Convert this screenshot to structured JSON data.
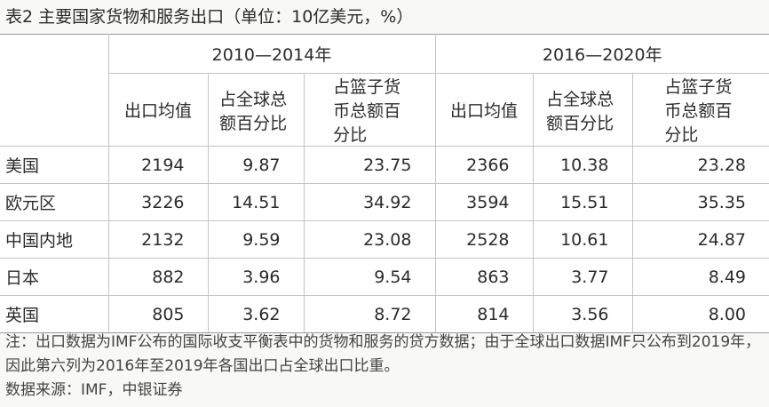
{
  "title": "表2 主要国家货物和服务出口（单位：10亿美元，%）",
  "table": {
    "groups": [
      "2010—2014年",
      "2016—2020年"
    ],
    "columns": [
      "出口均值",
      "占全球总额百分比",
      "占篮子货币总额百分比",
      "出口均值",
      "占全球总额百分比",
      "占篮子货币总额百分比"
    ],
    "rows": [
      {
        "label": "美国",
        "cells": [
          "2194",
          "9.87",
          "23.75",
          "2366",
          "10.38",
          "23.28"
        ]
      },
      {
        "label": "欧元区",
        "cells": [
          "3226",
          "14.51",
          "34.92",
          "3594",
          "15.51",
          "35.35"
        ]
      },
      {
        "label": "中国内地",
        "cells": [
          "2132",
          "9.59",
          "23.08",
          "2528",
          "10.61",
          "24.87"
        ]
      },
      {
        "label": "日本",
        "cells": [
          "882",
          "3.96",
          "9.54",
          "863",
          "3.77",
          "8.49"
        ]
      },
      {
        "label": "英国",
        "cells": [
          "805",
          "3.62",
          "8.72",
          "814",
          "3.56",
          "8.00"
        ]
      }
    ]
  },
  "notes": [
    "注：出口数据为IMF公布的国际收支平衡表中的货物和服务的贷方数据；由于全球出口数据IMF只公布到2019年，因此第六列为2016年至2019年各国出口占全球出口比重。",
    "数据来源：IMF，中银证券"
  ]
}
